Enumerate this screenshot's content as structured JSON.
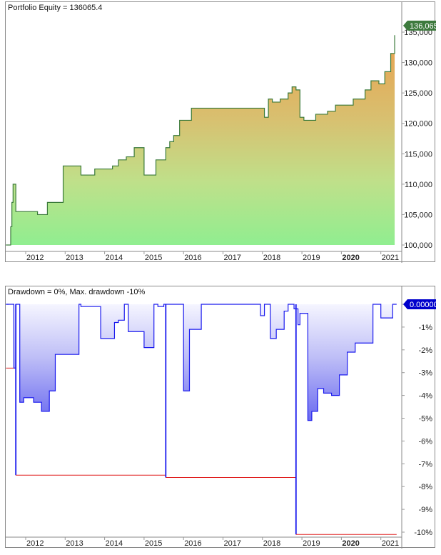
{
  "chart_data": [
    {
      "type": "area",
      "title": "Portfolio Equity = 136065.4",
      "series_name": "Portfolio Equity",
      "current_value": 136065.4,
      "current_value_label": "136,065",
      "ylim": [
        99500,
        137500
      ],
      "yticks": [
        100000,
        105000,
        110000,
        115000,
        120000,
        125000,
        130000,
        135000
      ],
      "ytick_labels": [
        "100,000",
        "105,000",
        "110,000",
        "115,000",
        "120,000",
        "125,000",
        "130,000",
        "135,000"
      ],
      "xticks": [
        "2012",
        "2013",
        "2014",
        "2015",
        "2016",
        "2017",
        "2018",
        "2019",
        "2020",
        "2021"
      ],
      "xtick_bold": [
        "2020"
      ],
      "colors": {
        "line": "#3a7a3a",
        "fill_top": "#e8a050",
        "fill_bottom": "#90ee90",
        "marker_bg": "#3d7a3d"
      },
      "x": [
        2011.5,
        2011.62,
        2011.65,
        2011.68,
        2011.75,
        2011.85,
        2012.3,
        2012.45,
        2012.55,
        2012.95,
        2013.4,
        2013.55,
        2013.75,
        2014.2,
        2014.35,
        2014.55,
        2014.75,
        2015.0,
        2015.3,
        2015.55,
        2015.65,
        2015.75,
        2015.9,
        2016.2,
        2016.35,
        2016.45,
        2016.7,
        2018.05,
        2018.15,
        2018.25,
        2018.45,
        2018.65,
        2018.75,
        2018.85,
        2018.95,
        2019.05,
        2019.35,
        2019.45,
        2019.65,
        2019.85,
        2020.3,
        2020.6,
        2020.75,
        2020.95,
        2021.1,
        2021.25,
        2021.35
      ],
      "values": [
        100000,
        103000,
        107000,
        110000,
        105500,
        105500,
        105000,
        105000,
        107000,
        113000,
        111500,
        111500,
        112500,
        113000,
        114000,
        114500,
        116000,
        111500,
        114000,
        116000,
        117000,
        118000,
        120500,
        122500,
        122500,
        122500,
        122500,
        121000,
        124000,
        123500,
        124000,
        125000,
        126000,
        125500,
        121000,
        120500,
        121500,
        121500,
        122000,
        123000,
        124000,
        125500,
        127000,
        126500,
        128500,
        131500,
        134500
      ]
    },
    {
      "type": "line",
      "title": "Drawdown = 0%, Max. drawdown -10%",
      "current_drawdown_pct": 0,
      "max_drawdown_pct": -10,
      "current_value_label": "0.00000",
      "ylim": [
        -10.5,
        0.3
      ],
      "yticks": [
        0,
        -1,
        -2,
        -3,
        -4,
        -5,
        -6,
        -7,
        -8,
        -9,
        -10
      ],
      "ytick_labels": [
        "",
        "-1%",
        "-2%",
        "-3%",
        "-4%",
        "-5%",
        "-6%",
        "-7%",
        "-8%",
        "-9%",
        "-10%"
      ],
      "xticks": [
        "2012",
        "2013",
        "2014",
        "2015",
        "2016",
        "2017",
        "2018",
        "2019",
        "2020",
        "2021"
      ],
      "xtick_bold": [
        "2020"
      ],
      "colors": {
        "line": "#1a1aee",
        "fill_top": "#f2f2ff",
        "fill_bottom": "#6a6af0",
        "max_dd_line": "#e02020",
        "marker_bg": "#0000cc"
      },
      "drawdown_series": {
        "x": [
          2011.5,
          2011.7,
          2011.75,
          2011.85,
          2011.95,
          2012.2,
          2012.4,
          2012.6,
          2012.75,
          2013.35,
          2013.4,
          2013.9,
          2014.15,
          2014.25,
          2014.35,
          2014.5,
          2014.6,
          2015.0,
          2015.25,
          2015.35,
          2015.5,
          2015.75,
          2016.0,
          2016.15,
          2016.45,
          2017.95,
          2018.05,
          2018.2,
          2018.35,
          2018.55,
          2018.65,
          2018.75,
          2018.8,
          2018.9,
          2018.95,
          2019.15,
          2019.25,
          2019.4,
          2019.55,
          2019.75,
          2019.95,
          2020.15,
          2020.35,
          2020.6,
          2020.8,
          2021.0,
          2021.3,
          2021.4
        ],
        "values": [
          0,
          -2.8,
          0,
          -4.3,
          -4.1,
          -4.3,
          -4.7,
          -3.8,
          -2.2,
          0,
          -0.1,
          -1.5,
          -1.5,
          -0.8,
          -0.7,
          0,
          -1.2,
          -1.9,
          0,
          -0.1,
          0,
          0,
          -3.8,
          -1.1,
          0,
          -0.5,
          0,
          -1.5,
          -1.1,
          -0.3,
          0,
          0,
          -0.2,
          -0.9,
          -0.4,
          -5.1,
          -4.7,
          -3.7,
          -3.9,
          -4.0,
          -3.1,
          -2.1,
          -1.7,
          -1.7,
          0,
          -0.6,
          0,
          0
        ]
      },
      "max_drawdown_series": {
        "x": [
          2011.5,
          2011.75,
          2011.75,
          2015.55,
          2015.55,
          2018.85,
          2018.85,
          2021.4
        ],
        "values": [
          -2.8,
          -2.8,
          -7.5,
          -7.5,
          -7.6,
          -7.6,
          -10.1,
          -10.1
        ]
      }
    }
  ],
  "equity_panel": {
    "title": "Portfolio Equity = 136065.4",
    "marker_label": "136,065"
  },
  "drawdown_panel": {
    "title": "Drawdown = 0%, Max. drawdown -10%",
    "marker_label": "0.00000"
  }
}
